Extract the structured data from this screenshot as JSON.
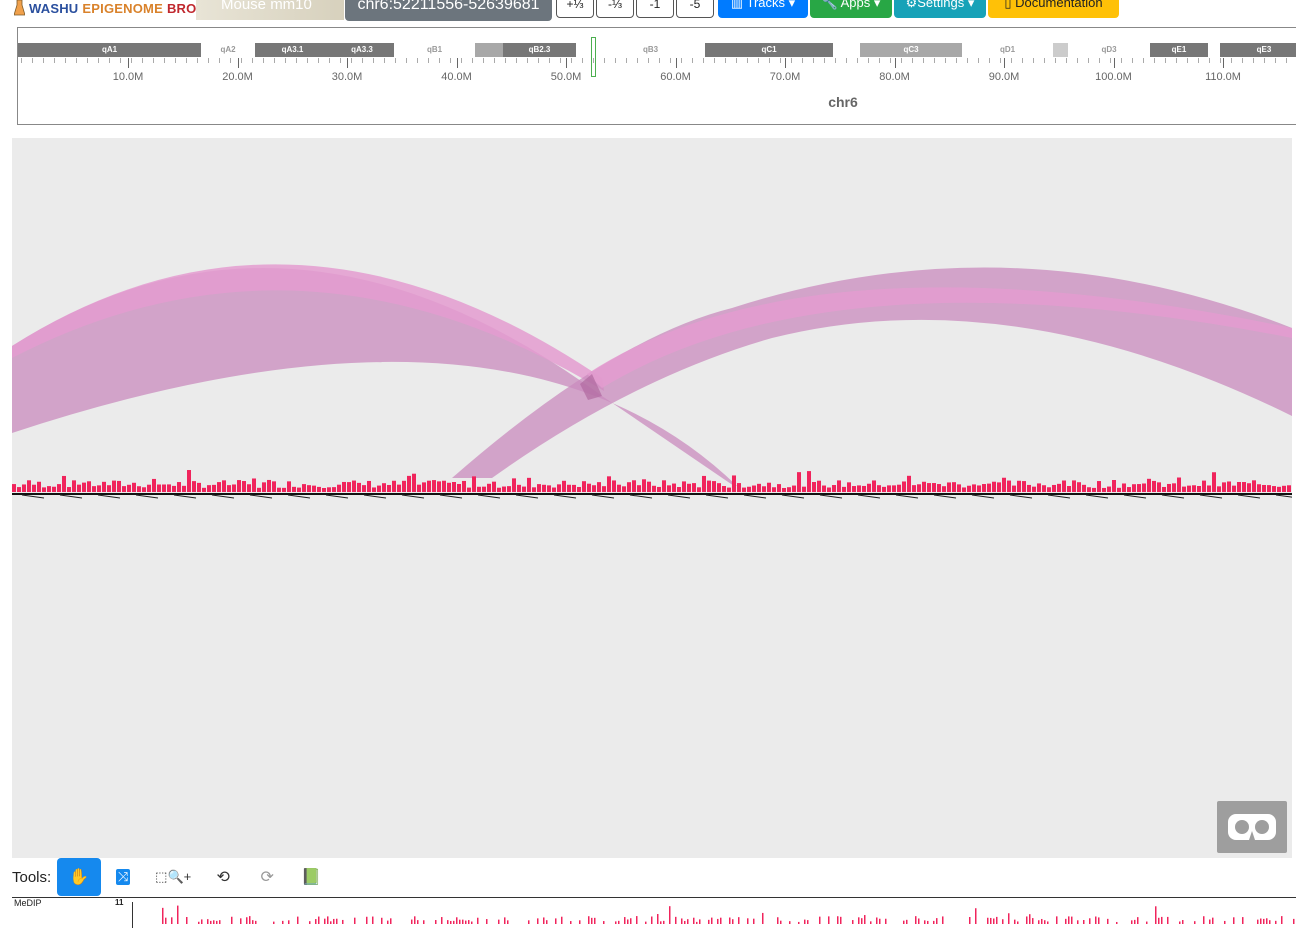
{
  "app": {
    "logo": {
      "part1": "WASHU",
      "part2": "EPI",
      "part3": "GENOME",
      "part4": "BROWSER"
    },
    "genome": "Mouse mm10",
    "region": "chr6:52211556-52639681"
  },
  "zoom_buttons": [
    "+⅓",
    "-⅓",
    "-1",
    "-5"
  ],
  "nav": {
    "tracks": {
      "label": "Tracks",
      "color": "#007bff"
    },
    "apps": {
      "label": "Apps",
      "color": "#28a745"
    },
    "settings": {
      "label": "⚙Settings",
      "color": "#17a2b8"
    },
    "documentation": {
      "label": "Documentation",
      "color": "#ffc107"
    }
  },
  "ideogram": {
    "chromosome": "chr6",
    "bands": [
      {
        "name": "qA1",
        "shade": "dark"
      },
      {
        "name": "qA2",
        "shade": "light"
      },
      {
        "name": "qA3.1",
        "shade": "dark"
      },
      {
        "name": "qA3.3",
        "shade": "dark"
      },
      {
        "name": "qB1",
        "shade": "light"
      },
      {
        "name": "qB2.3",
        "shade": "dark"
      },
      {
        "name": "qB3",
        "shade": "light"
      },
      {
        "name": "qC1",
        "shade": "dark"
      },
      {
        "name": "qC3",
        "shade": "mid"
      },
      {
        "name": "qD1",
        "shade": "light"
      },
      {
        "name": "qD3",
        "shade": "light"
      },
      {
        "name": "qE1",
        "shade": "dark"
      },
      {
        "name": "qE3",
        "shade": "dark"
      }
    ],
    "tick_labels": [
      "10.0M",
      "20.0M",
      "30.0M",
      "40.0M",
      "50.0M",
      "60.0M",
      "70.0M",
      "80.0M",
      "90.0M",
      "100.0M",
      "110.0M"
    ]
  },
  "main_view": {
    "arc_color": "#c98bbd",
    "arc_top_color": "#e49cd0",
    "signal_color": "#f0245c"
  },
  "tools": {
    "label": "Tools:",
    "items": [
      {
        "name": "drag-tool",
        "icon": "✋"
      },
      {
        "name": "reorder-tool",
        "icon": "⤨"
      },
      {
        "name": "zoom-region-tool",
        "icon": "⬚🔍+"
      },
      {
        "name": "undo",
        "icon": "⟲"
      },
      {
        "name": "redo",
        "icon": "⟳"
      },
      {
        "name": "session-book",
        "icon": "📗"
      }
    ]
  },
  "tracks": [
    {
      "label": "MeDIP",
      "max": "11"
    }
  ]
}
